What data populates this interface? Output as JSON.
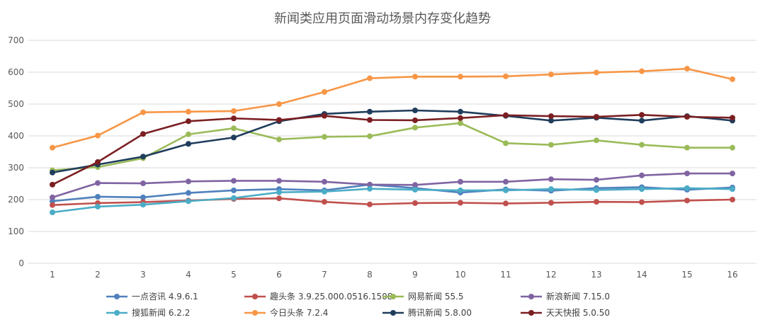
{
  "chart_data": {
    "type": "line",
    "title": "新闻类应用页面滑动场景内存变化趋势",
    "xlabel": "",
    "ylabel": "",
    "x": [
      1,
      2,
      3,
      4,
      5,
      6,
      7,
      8,
      9,
      10,
      11,
      12,
      13,
      14,
      15,
      16
    ],
    "ylim": [
      0,
      700
    ],
    "yticks": [
      0,
      100,
      200,
      300,
      400,
      500,
      600,
      700
    ],
    "grid": true,
    "legend_position": "bottom",
    "series": [
      {
        "name": "一点咨讯 4.9.6.1",
        "color": "#4f81bd",
        "values": [
          195,
          209,
          207,
          221,
          229,
          233,
          229,
          247,
          236,
          222,
          232,
          228,
          236,
          239,
          231,
          238
        ]
      },
      {
        "name": "趣头条 3.9.25.000.0516.1508",
        "color": "#c0504d",
        "values": [
          183,
          189,
          192,
          197,
          202,
          204,
          193,
          185,
          189,
          190,
          188,
          190,
          193,
          192,
          197,
          200
        ]
      },
      {
        "name": "网易新闻 55.5",
        "color": "#9bbb59",
        "values": [
          292,
          302,
          330,
          405,
          424,
          389,
          397,
          399,
          426,
          440,
          377,
          372,
          386,
          372,
          363,
          363
        ]
      },
      {
        "name": "新浪新闻 7.15.0",
        "color": "#8064a2",
        "values": [
          207,
          252,
          251,
          257,
          259,
          259,
          256,
          247,
          246,
          256,
          256,
          264,
          262,
          276,
          282,
          282
        ]
      },
      {
        "name": "搜狐新闻 6.2.2",
        "color": "#4bacc6",
        "values": [
          160,
          178,
          184,
          195,
          205,
          223,
          225,
          234,
          231,
          229,
          229,
          233,
          230,
          233,
          236,
          233
        ]
      },
      {
        "name": "今日头条 7.2.4",
        "color": "#f79646",
        "values": [
          363,
          401,
          474,
          476,
          478,
          500,
          538,
          581,
          586,
          586,
          587,
          593,
          599,
          603,
          611,
          578
        ]
      },
      {
        "name": "腾讯新闻 5.8.00",
        "color": "#1f3d5c",
        "values": [
          285,
          310,
          335,
          375,
          395,
          446,
          469,
          476,
          480,
          476,
          463,
          448,
          457,
          448,
          462,
          448
        ]
      },
      {
        "name": "天天快报 5.0.50",
        "color": "#7b1f22",
        "values": [
          247,
          318,
          406,
          446,
          455,
          450,
          463,
          450,
          449,
          456,
          465,
          462,
          460,
          466,
          460,
          457
        ]
      }
    ]
  }
}
